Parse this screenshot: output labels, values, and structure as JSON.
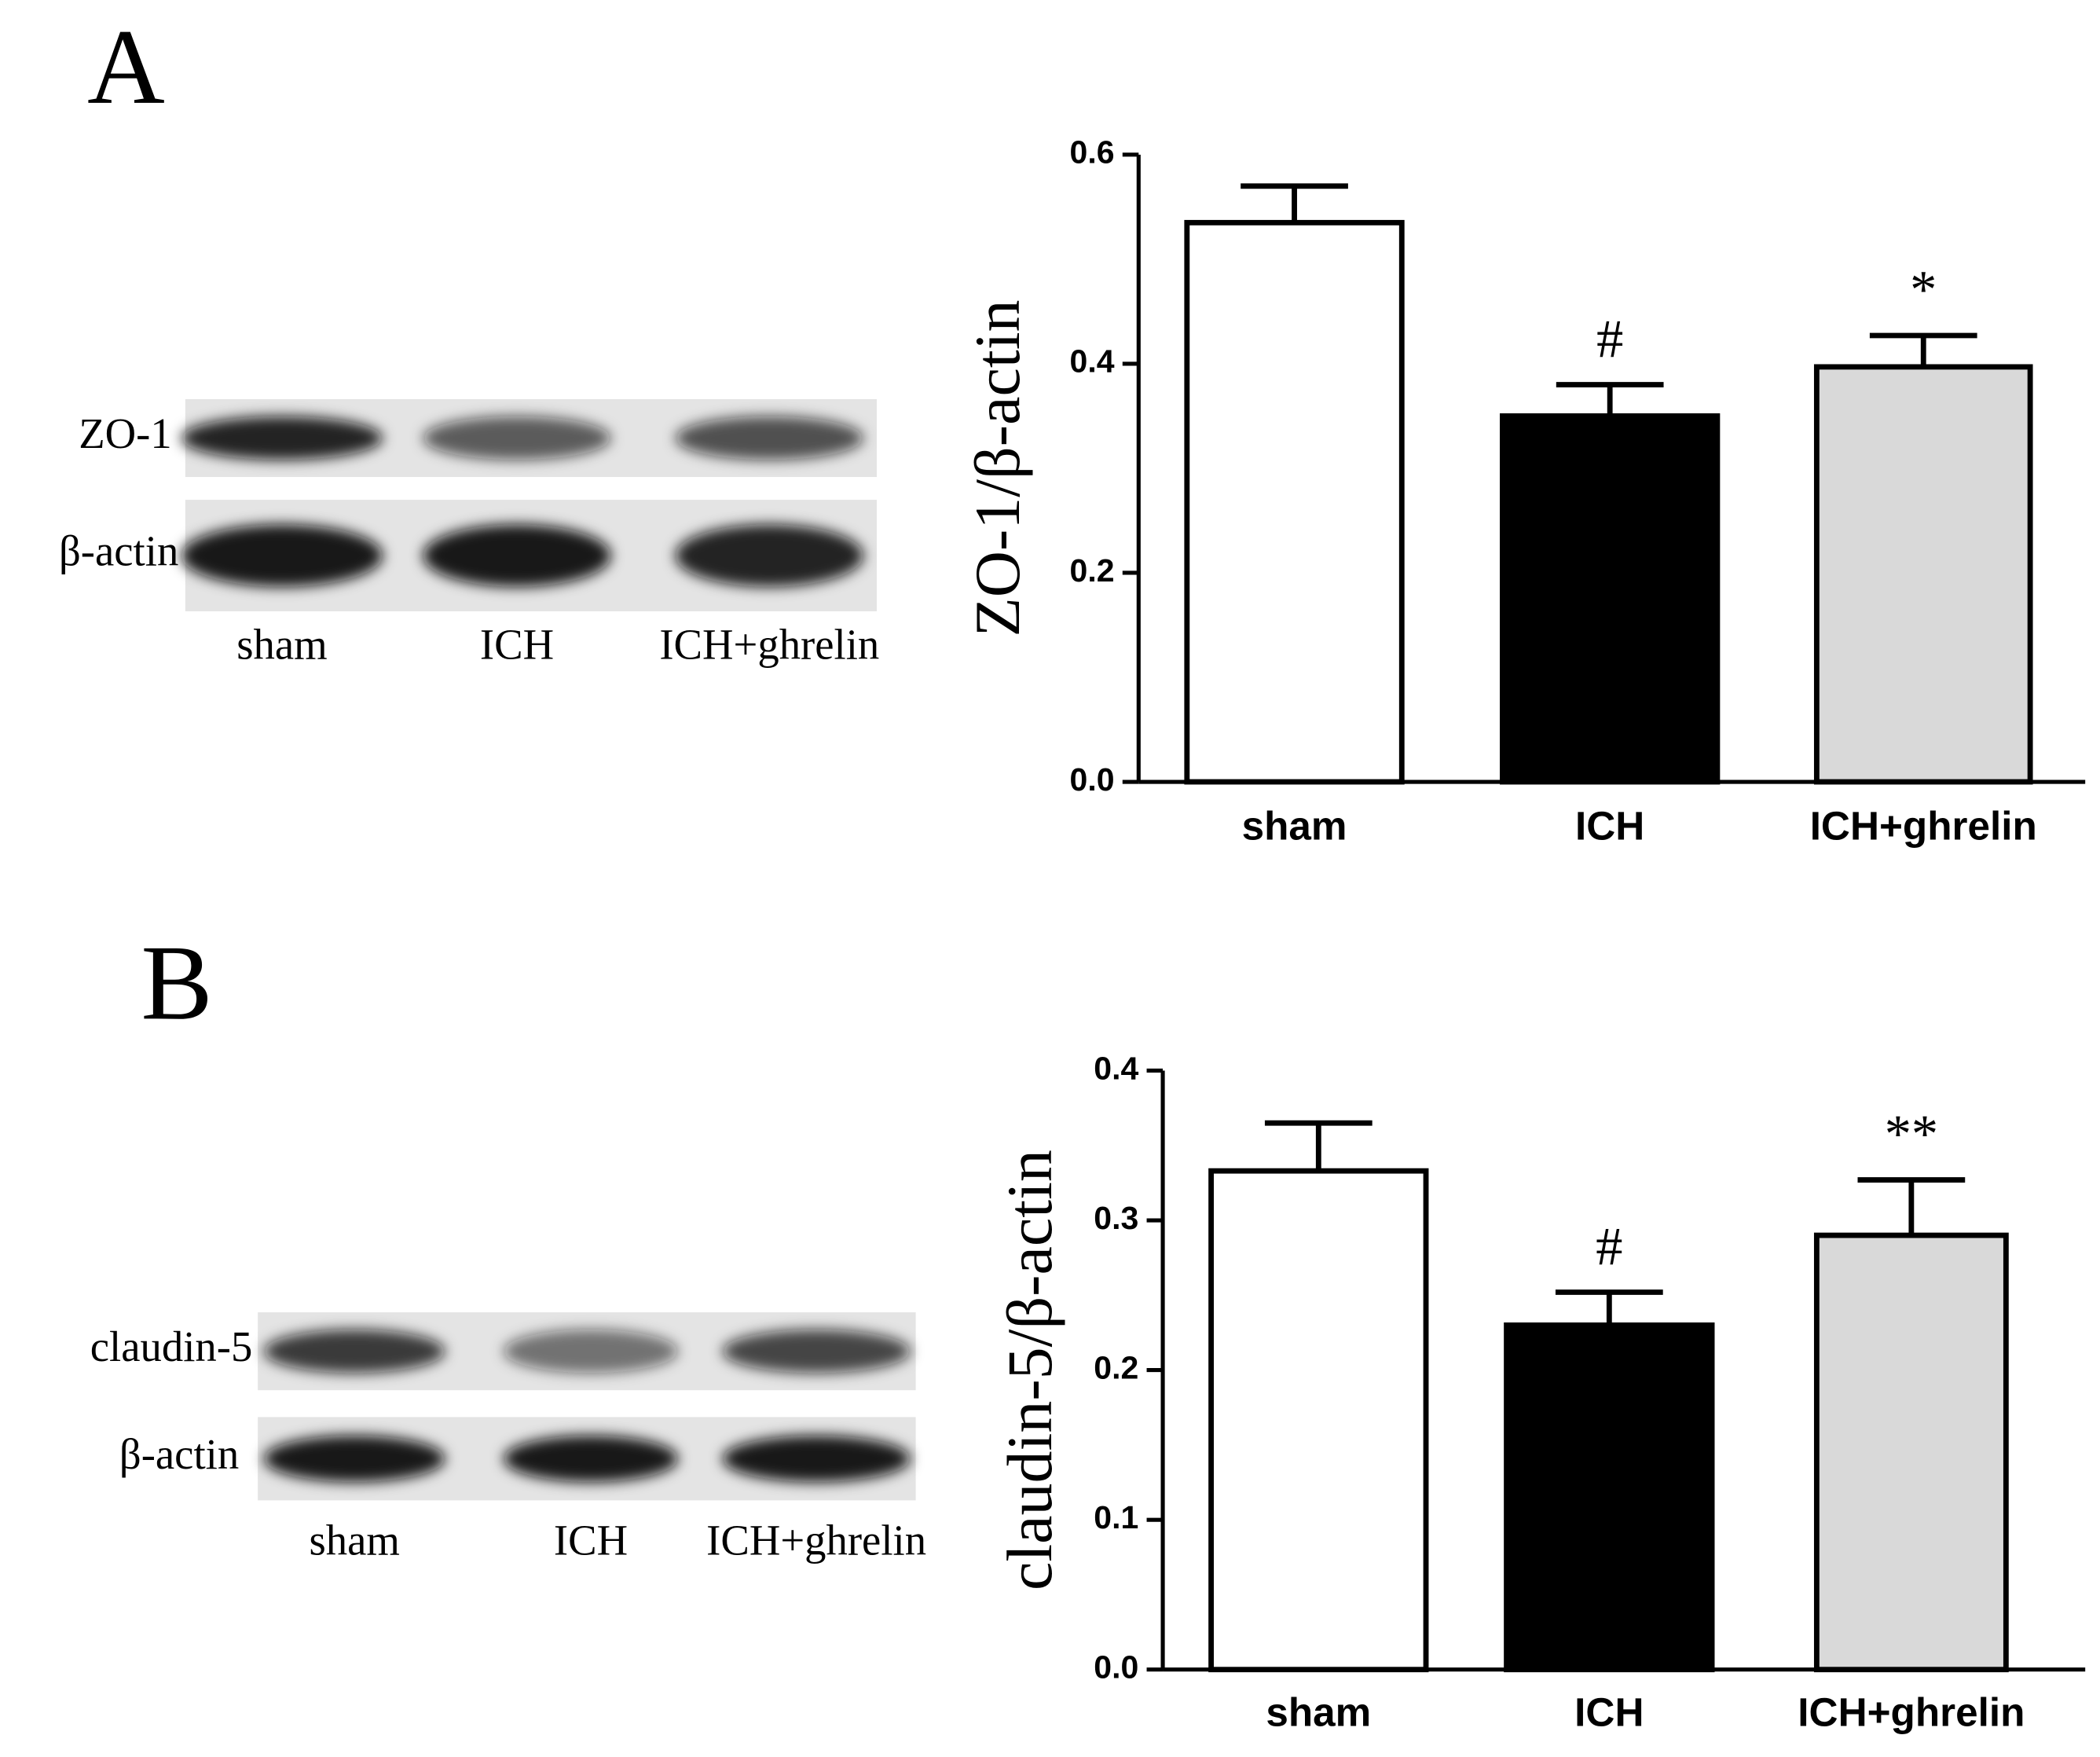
{
  "panels": [
    {
      "label": "A",
      "blot": {
        "rows": [
          "ZO-1",
          "β-actin"
        ],
        "lanes": [
          "sham",
          "ICH",
          "ICH+ghrelin"
        ]
      }
    },
    {
      "label": "B",
      "blot": {
        "rows": [
          "claudin-5",
          "β-actin"
        ],
        "lanes": [
          "sham",
          "ICH",
          "ICH+ghrelin"
        ]
      }
    }
  ],
  "chart_data": [
    {
      "type": "bar",
      "y_label": "ZO-1/β-actin",
      "categories": [
        "sham",
        "ICH",
        "ICH+ghrelin"
      ],
      "values": [
        0.535,
        0.35,
        0.397
      ],
      "errors": [
        0.035,
        0.03,
        0.03
      ],
      "colors": [
        "#ffffff",
        "#000000",
        "#d9d9d9"
      ],
      "annotations": [
        null,
        "#",
        "*"
      ],
      "ylim": [
        0,
        0.6
      ],
      "yticks": [
        {
          "value": 0,
          "label": "0.0"
        },
        0.2,
        0.4,
        0.6
      ],
      "grid": false
    },
    {
      "type": "bar",
      "y_label": "claudin-5/β-actin",
      "categories": [
        "sham",
        "ICH",
        "ICH+ghrelin"
      ],
      "values": [
        0.333,
        0.23,
        0.29
      ],
      "errors": [
        0.032,
        0.022,
        0.037
      ],
      "colors": [
        "#ffffff",
        "#000000",
        "#d9d9d9"
      ],
      "annotations": [
        null,
        "#",
        "**"
      ],
      "ylim": [
        0,
        0.4
      ],
      "yticks": [
        {
          "value": 0,
          "label": "0.0"
        },
        0.1,
        0.2,
        0.3,
        0.4
      ],
      "grid": false
    }
  ]
}
